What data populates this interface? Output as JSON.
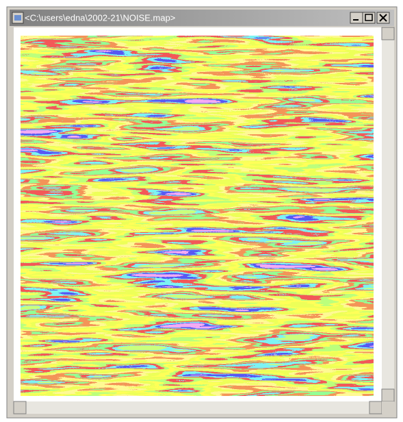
{
  "window": {
    "title": "<C:\\users\\edna\\2002-21\\NOISE.map>"
  }
}
